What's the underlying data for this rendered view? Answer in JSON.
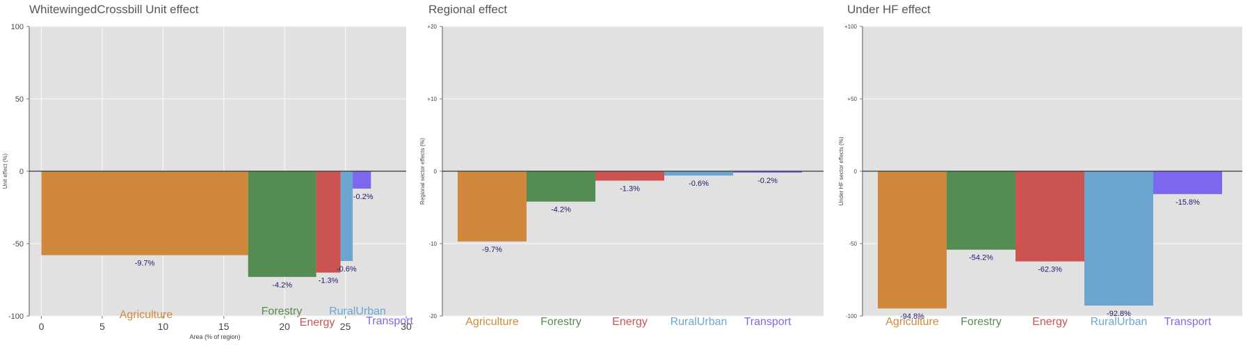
{
  "colors": {
    "Agriculture": "#D0883C",
    "Forestry": "#548C52",
    "Energy": "#CB5450",
    "RuralUrban": "#6CA6D0",
    "Transport": "#7B68EE",
    "panel": "#E1E1E1",
    "grid": "#F7F7F7",
    "zero": "#333333"
  },
  "chart_data": [
    {
      "type": "bar",
      "title": "WhitewingedCrossbill Unit effect",
      "xlabel": "Area (% of region)",
      "ylabel": "Unit effect (%)",
      "xlim": [
        -1,
        30
      ],
      "ylim": [
        -100,
        100
      ],
      "xticks": [
        "0",
        "5",
        "10",
        "15",
        "20",
        "25",
        "30"
      ],
      "yticks": [
        "-100",
        "-50",
        "0",
        "50",
        "100"
      ],
      "categories": [
        "Agriculture",
        "Forestry",
        "Energy",
        "RuralUrban",
        "Transport"
      ],
      "x_start": [
        0,
        17,
        22.6,
        24.6,
        25.6
      ],
      "x_end": [
        17,
        22.6,
        24.6,
        25.6,
        27.1
      ],
      "values": [
        -58,
        -73,
        -70,
        -62,
        -12
      ],
      "data_labels": [
        "-9.7%",
        "-4.2%",
        "-1.3%",
        "-0.6%",
        "-0.2%"
      ]
    },
    {
      "type": "bar",
      "title": "Regional effect",
      "xlabel": "",
      "ylabel": "Regional sector effects (%)",
      "ylim": [
        -20,
        20
      ],
      "yticks": [
        "-20",
        "-10",
        "0",
        "+10",
        "+20"
      ],
      "categories": [
        "Agriculture",
        "Forestry",
        "Energy",
        "RuralUrban",
        "Transport"
      ],
      "values": [
        -9.7,
        -4.2,
        -1.3,
        -0.6,
        -0.2
      ],
      "data_labels": [
        "-9.7%",
        "-4.2%",
        "-1.3%",
        "-0.6%",
        "-0.2%"
      ]
    },
    {
      "type": "bar",
      "title": "Under HF effect",
      "xlabel": "",
      "ylabel": "Under HF sector effects (%)",
      "ylim": [
        -100,
        100
      ],
      "yticks": [
        "-100",
        "-50",
        "0",
        "+50",
        "+100"
      ],
      "categories": [
        "Agriculture",
        "Forestry",
        "Energy",
        "RuralUrban",
        "Transport"
      ],
      "values": [
        -94.8,
        -54.2,
        -62.3,
        -92.8,
        -15.8
      ],
      "data_labels": [
        "-94.8%",
        "-54.2%",
        "-62.3%",
        "-92.8%",
        "-15.8%"
      ]
    }
  ]
}
